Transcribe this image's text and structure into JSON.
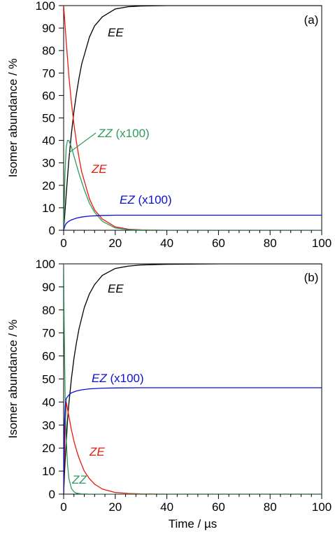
{
  "chart_data": [
    {
      "type": "line",
      "panel_label": "(a)",
      "ylabel": "Isomer abundance / %",
      "xlabel": "",
      "xlim": [
        0,
        100
      ],
      "ylim": [
        0,
        100
      ],
      "x_ticks": [
        0,
        20,
        40,
        60,
        80,
        100
      ],
      "y_ticks": [
        0,
        10,
        20,
        30,
        40,
        50,
        60,
        70,
        80,
        90,
        100
      ],
      "grid": false,
      "series": [
        {
          "name": "EE",
          "label": "EE",
          "color": "#000000",
          "x": [
            0,
            1,
            2,
            3,
            4,
            5,
            6,
            7,
            8,
            10,
            12,
            15,
            20,
            25,
            30,
            40,
            50,
            60,
            80,
            100
          ],
          "y": [
            0,
            16,
            31,
            43,
            53,
            61,
            68,
            74,
            78,
            86,
            91,
            95,
            98.5,
            99.5,
            99.8,
            100,
            100,
            100,
            100,
            100
          ]
        },
        {
          "name": "ZE",
          "label": "ZE",
          "color": "#e8190f",
          "x": [
            0,
            1,
            2,
            3,
            4,
            5,
            6,
            7,
            8,
            10,
            12,
            15,
            20,
            25,
            30,
            40,
            50,
            60,
            80,
            100
          ],
          "y": [
            100,
            84,
            69,
            57,
            47,
            39,
            32,
            26,
            22,
            14,
            9,
            5,
            1.5,
            0.5,
            0.2,
            0,
            0,
            0,
            0,
            0
          ]
        },
        {
          "name": "ZZ (x100)",
          "label": "ZZ",
          "label_suffix": " (x100)",
          "color": "#2e9a5e",
          "x": [
            0,
            0.5,
            1,
            1.5,
            2,
            3,
            4,
            5,
            6,
            8,
            10,
            12,
            15,
            20,
            25,
            30,
            40,
            60,
            80,
            100
          ],
          "y": [
            0,
            25,
            37,
            40,
            40,
            37,
            33,
            29,
            25,
            18,
            12,
            8,
            4,
            1,
            0.3,
            0.1,
            0,
            0,
            0,
            0
          ]
        },
        {
          "name": "EZ (x100)",
          "label": "EZ",
          "label_suffix": " (x100)",
          "color": "#0a10d6",
          "x": [
            0,
            0.5,
            1,
            2,
            3,
            5,
            7,
            10,
            15,
            20,
            30,
            40,
            60,
            80,
            100
          ],
          "y": [
            0,
            2,
            3,
            4,
            4.6,
            5.4,
            5.9,
            6.3,
            6.6,
            6.7,
            6.7,
            6.7,
            6.7,
            6.7,
            6.7
          ]
        }
      ]
    },
    {
      "type": "line",
      "panel_label": "(b)",
      "ylabel": "Isomer abundance / %",
      "xlabel": "Time / µs",
      "xlim": [
        0,
        100
      ],
      "ylim": [
        0,
        100
      ],
      "x_ticks": [
        0,
        20,
        40,
        60,
        80,
        100
      ],
      "y_ticks": [
        0,
        10,
        20,
        30,
        40,
        50,
        60,
        70,
        80,
        90,
        100
      ],
      "grid": false,
      "series": [
        {
          "name": "EE",
          "label": "EE",
          "color": "#000000",
          "x": [
            0,
            0.3,
            0.6,
            1,
            1.5,
            2,
            3,
            4,
            5,
            6,
            8,
            10,
            12,
            15,
            20,
            25,
            30,
            40,
            60,
            80,
            100
          ],
          "y": [
            0,
            8,
            15,
            22,
            32,
            39,
            50,
            59,
            66,
            72,
            81,
            87,
            91,
            95,
            98,
            99,
            99.5,
            99.8,
            100,
            100,
            100
          ]
        },
        {
          "name": "ZE",
          "label": "ZE",
          "color": "#e8190f",
          "x": [
            0,
            0.5,
            1,
            2,
            3,
            4,
            5,
            6,
            8,
            10,
            12,
            15,
            20,
            25,
            30,
            40,
            60,
            80,
            100
          ],
          "y": [
            0,
            25,
            40,
            34,
            28,
            23,
            19,
            15.5,
            10,
            6.7,
            4.3,
            2.2,
            0.7,
            0.3,
            0.1,
            0,
            0,
            0,
            0
          ]
        },
        {
          "name": "ZZ",
          "label": "ZZ",
          "label_suffix": "",
          "color": "#2e9a5e",
          "x": [
            0,
            0.2,
            0.4,
            0.6,
            0.8,
            1,
            1.5,
            2,
            3,
            4,
            5,
            7,
            10,
            20,
            40,
            60,
            80,
            100
          ],
          "y": [
            100,
            75,
            56,
            42,
            32,
            24,
            13,
            7,
            2.5,
            1,
            0.4,
            0.1,
            0,
            0,
            0,
            0,
            0,
            0
          ]
        },
        {
          "name": "EZ (x100)",
          "label": "EZ",
          "label_suffix": " (x100)",
          "color": "#0a10d6",
          "x": [
            0,
            0.3,
            0.6,
            1,
            2,
            3,
            5,
            7,
            10,
            15,
            20,
            30,
            40,
            60,
            80,
            100
          ],
          "y": [
            0,
            30,
            38,
            41.5,
            43,
            44,
            44.8,
            45.3,
            45.7,
            46,
            46.1,
            46.2,
            46.2,
            46.2,
            46.2,
            46.2
          ]
        }
      ]
    }
  ]
}
